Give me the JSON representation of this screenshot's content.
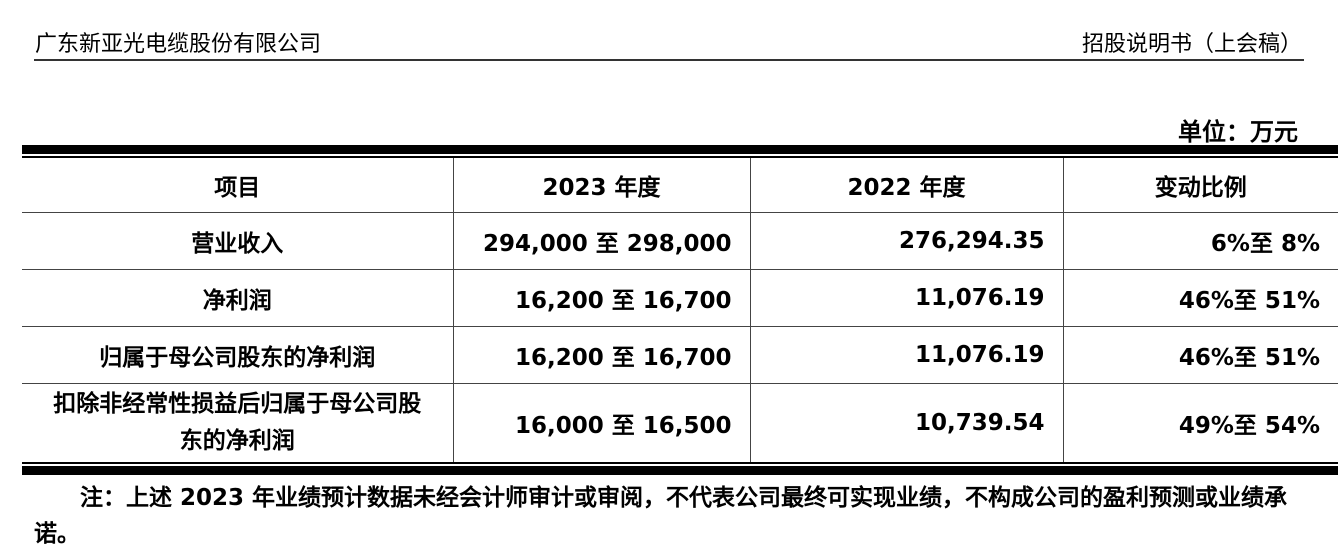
{
  "header": {
    "company": "广东新亚光电缆股份有限公司",
    "doc_title": "招股说明书（上会稿）"
  },
  "unit": "单位：万元",
  "table": {
    "columns": [
      "项目",
      "2023 年度",
      "2022 年度",
      "变动比例"
    ],
    "rows": [
      [
        "营业收入",
        "294,000 至 298,000",
        "276,294.35",
        "6%至 8%"
      ],
      [
        "净利润",
        "16,200 至 16,700",
        "11,076.19",
        "46%至 51%"
      ],
      [
        "归属于母公司股东的净利润",
        "16,200 至 16,700",
        "11,076.19",
        "46%至 51%"
      ],
      [
        "扣除非经常性损益后归属于母公司股东的净利润",
        "16,000 至 16,500",
        "10,739.54",
        "49%至 54%"
      ]
    ]
  },
  "note": "注：上述 2023 年业绩预计数据未经会计师审计或审阅，不代表公司最终可实现业绩，不构成公司的盈利预测或业绩承诺。"
}
